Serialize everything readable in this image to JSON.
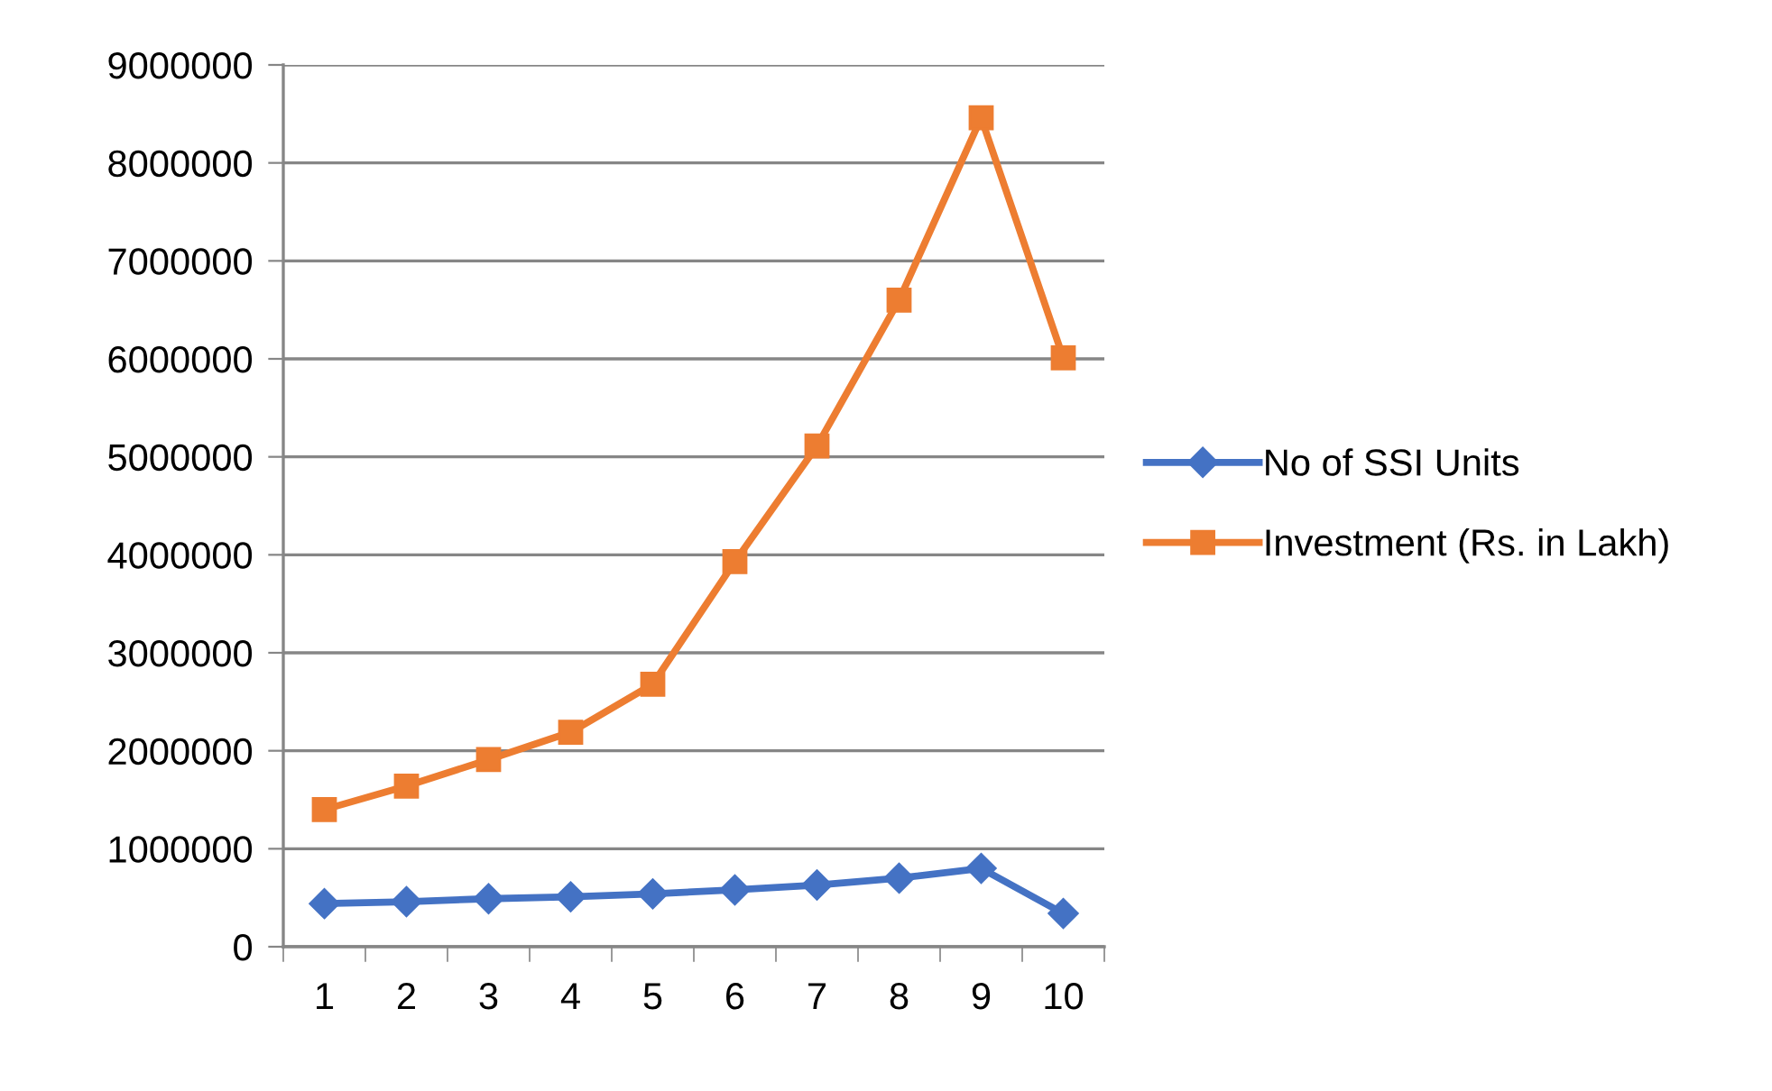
{
  "chart_data": {
    "type": "line",
    "categories": [
      "1",
      "2",
      "3",
      "4",
      "5",
      "6",
      "7",
      "8",
      "9",
      "10"
    ],
    "series": [
      {
        "name": "No of SSI Units",
        "color": "#4472c4",
        "marker": "diamond",
        "values": [
          440000,
          460000,
          490000,
          510000,
          540000,
          580000,
          630000,
          700000,
          800000,
          340000
        ]
      },
      {
        "name": "Investment (Rs. in Lakh)",
        "color": "#ed7d31",
        "marker": "square",
        "values": [
          1400000,
          1640000,
          1910000,
          2190000,
          2680000,
          3930000,
          5110000,
          6600000,
          8460000,
          6010000
        ]
      }
    ],
    "ylim": [
      0,
      9000000
    ],
    "yticks": [
      0,
      1000000,
      2000000,
      3000000,
      4000000,
      5000000,
      6000000,
      7000000,
      8000000,
      9000000
    ],
    "grid": "y",
    "legend": "right",
    "line_style": "solid"
  }
}
